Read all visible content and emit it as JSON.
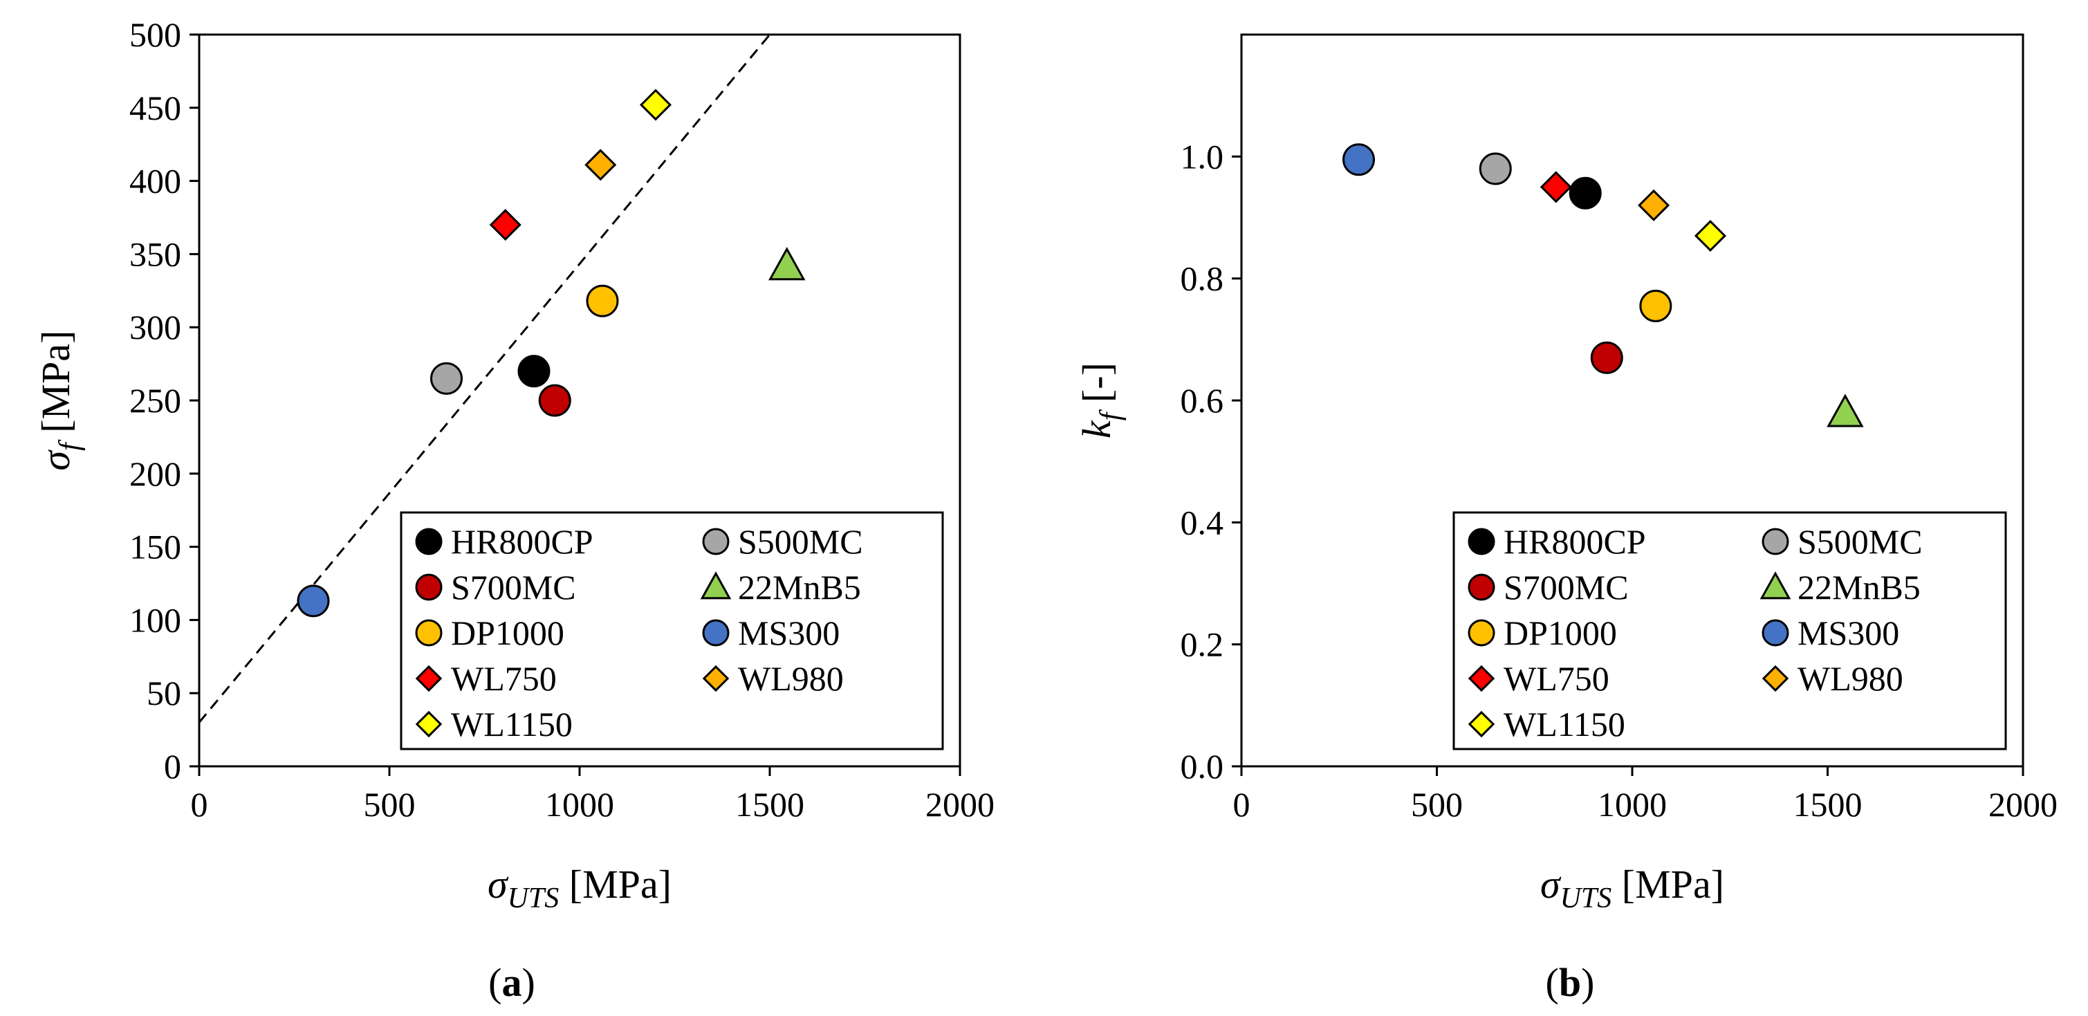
{
  "colors": {
    "HR800CP": "#000000",
    "S500MC": "#a6a6a6",
    "S700MC": "#c00000",
    "22MnB5": "#92d050",
    "DP1000": "#ffc000",
    "MS300": "#4472c4",
    "WL750": "#ff0000",
    "WL980": "#ffb000",
    "WL1150": "#ffff00"
  },
  "chart_data": [
    {
      "type": "scatter",
      "panel_label": {
        "open": "(",
        "letter": "a",
        "close": ")"
      },
      "xlabel": {
        "symbol": "σ",
        "sub": "UTS",
        "unit": " [MPa]"
      },
      "ylabel": {
        "symbol": "σ",
        "sub": "f",
        "unit": " [MPa]"
      },
      "xlim": [
        0,
        2000
      ],
      "ylim": [
        0,
        500
      ],
      "x_ticks": [
        0,
        500,
        1000,
        1500,
        2000
      ],
      "x_tick_labels": [
        "0",
        "500",
        "1000",
        "1500",
        "2000"
      ],
      "y_ticks": [
        0,
        50,
        100,
        150,
        200,
        250,
        300,
        350,
        400,
        450,
        500
      ],
      "y_tick_labels": [
        "0",
        "50",
        "100",
        "150",
        "200",
        "250",
        "300",
        "350",
        "400",
        "450",
        "500"
      ],
      "grid": false,
      "legend_position": "bottom-right",
      "reference_line": {
        "style": "dashed",
        "x": [
          0,
          1500
        ],
        "y": [
          30,
          500
        ]
      },
      "series": [
        {
          "name": "HR800CP",
          "marker": "circle",
          "x": [
            880
          ],
          "y": [
            270
          ]
        },
        {
          "name": "S500MC",
          "marker": "circle",
          "x": [
            650
          ],
          "y": [
            265
          ]
        },
        {
          "name": "S700MC",
          "marker": "circle",
          "x": [
            935
          ],
          "y": [
            250
          ]
        },
        {
          "name": "22MnB5",
          "marker": "triangle",
          "x": [
            1545
          ],
          "y": [
            342
          ]
        },
        {
          "name": "DP1000",
          "marker": "circle",
          "x": [
            1060
          ],
          "y": [
            318
          ]
        },
        {
          "name": "MS300",
          "marker": "circle",
          "x": [
            300
          ],
          "y": [
            113
          ]
        },
        {
          "name": "WL750",
          "marker": "diamond",
          "x": [
            805
          ],
          "y": [
            370
          ]
        },
        {
          "name": "WL980",
          "marker": "diamond",
          "x": [
            1055
          ],
          "y": [
            411
          ]
        },
        {
          "name": "WL1150",
          "marker": "diamond",
          "x": [
            1200
          ],
          "y": [
            452
          ]
        }
      ]
    },
    {
      "type": "scatter",
      "panel_label": {
        "open": "(",
        "letter": "b",
        "close": ")"
      },
      "xlabel": {
        "symbol": "σ",
        "sub": "UTS",
        "unit": " [MPa]"
      },
      "ylabel": {
        "symbol": "k",
        "sub": "f",
        "unit": " [-]"
      },
      "xlim": [
        0,
        2000
      ],
      "ylim": [
        0,
        1.2
      ],
      "x_ticks": [
        0,
        500,
        1000,
        1500,
        2000
      ],
      "x_tick_labels": [
        "0",
        "500",
        "1000",
        "1500",
        "2000"
      ],
      "y_ticks": [
        0,
        0.2,
        0.4,
        0.6,
        0.8,
        1.0
      ],
      "y_tick_labels": [
        "0.0",
        "0.2",
        "0.4",
        "0.6",
        "0.8",
        "1.0"
      ],
      "grid": false,
      "legend_position": "bottom-right",
      "series": [
        {
          "name": "HR800CP",
          "marker": "circle",
          "x": [
            880
          ],
          "y": [
            0.94
          ]
        },
        {
          "name": "S500MC",
          "marker": "circle",
          "x": [
            650
          ],
          "y": [
            0.98
          ]
        },
        {
          "name": "S700MC",
          "marker": "circle",
          "x": [
            935
          ],
          "y": [
            0.67
          ]
        },
        {
          "name": "22MnB5",
          "marker": "triangle",
          "x": [
            1545
          ],
          "y": [
            0.58
          ]
        },
        {
          "name": "DP1000",
          "marker": "circle",
          "x": [
            1060
          ],
          "y": [
            0.755
          ]
        },
        {
          "name": "MS300",
          "marker": "circle",
          "x": [
            300
          ],
          "y": [
            0.995
          ]
        },
        {
          "name": "WL750",
          "marker": "diamond",
          "x": [
            805
          ],
          "y": [
            0.95
          ]
        },
        {
          "name": "WL980",
          "marker": "diamond",
          "x": [
            1055
          ],
          "y": [
            0.92
          ]
        },
        {
          "name": "WL1150",
          "marker": "diamond",
          "x": [
            1200
          ],
          "y": [
            0.87
          ]
        }
      ]
    }
  ]
}
